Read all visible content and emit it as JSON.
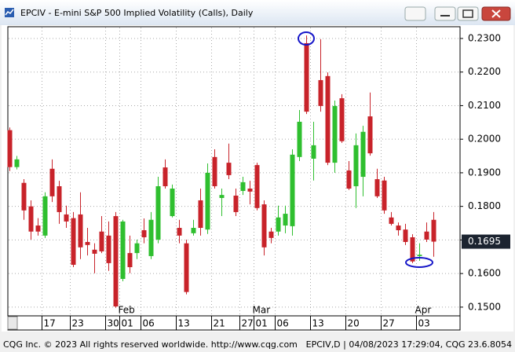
{
  "chart_data": {
    "type": "candlestick",
    "title": "EPCIV - E-mini S&P 500 Implied Volatility (Calls), Daily",
    "categories": [
      null,
      null,
      null,
      null,
      null,
      "17",
      null,
      null,
      null,
      "23",
      null,
      null,
      null,
      null,
      "30",
      null,
      "01",
      null,
      null,
      "06",
      null,
      null,
      null,
      null,
      "13",
      null,
      null,
      null,
      null,
      "21",
      null,
      null,
      null,
      "27",
      null,
      "01",
      null,
      null,
      "06",
      null,
      null,
      null,
      null,
      "13",
      null,
      null,
      null,
      null,
      "20",
      null,
      null,
      null,
      null,
      "27",
      null,
      null,
      null,
      null,
      "03",
      null,
      null
    ],
    "months": [
      null,
      null,
      null,
      null,
      null,
      null,
      null,
      null,
      null,
      null,
      null,
      null,
      null,
      null,
      null,
      null,
      "Feb",
      null,
      null,
      null,
      null,
      null,
      null,
      null,
      null,
      null,
      null,
      null,
      null,
      null,
      null,
      null,
      null,
      null,
      null,
      "Mar",
      null,
      null,
      null,
      null,
      null,
      null,
      null,
      null,
      null,
      null,
      null,
      null,
      null,
      null,
      null,
      null,
      null,
      null,
      null,
      null,
      null,
      null,
      "Apr",
      null,
      null
    ],
    "open": [
      0.2027,
      0.1917,
      0.187,
      0.18,
      0.1743,
      0.1713,
      0.1912,
      0.186,
      0.1776,
      0.1765,
      0.1776,
      0.1694,
      0.1671,
      0.1725,
      0.1713,
      0.1771,
      0.1584,
      0.1661,
      0.1661,
      0.1729,
      0.1652,
      0.1701,
      0.1916,
      0.1771,
      0.1736,
      0.169,
      0.172,
      0.1818,
      0.1731,
      0.1947,
      0.1825,
      0.193,
      0.1832,
      0.1846,
      0.1853,
      0.1923,
      0.1806,
      0.1725,
      0.1725,
      0.1743,
      0.1741,
      0.1947,
      0.2286,
      0.1942,
      0.2176,
      0.2188,
      0.193,
      0.2122,
      0.1907,
      0.186,
      0.1888,
      0.2068,
      0.1881,
      0.1877,
      0.1767,
      0.1743,
      0.1731,
      0.1708,
      0.1652,
      0.1725,
      0.176
    ],
    "high": [
      0.2035,
      0.195,
      0.1881,
      0.1818,
      0.1765,
      0.1842,
      0.194,
      0.1876,
      0.1802,
      0.1783,
      0.1842,
      0.1736,
      0.169,
      0.1771,
      0.1755,
      0.1783,
      0.176,
      0.1713,
      0.1701,
      0.1764,
      0.1783,
      0.1888,
      0.194,
      0.1865,
      0.176,
      0.1701,
      0.176,
      0.1853,
      0.1928,
      0.197,
      0.1853,
      0.1987,
      0.1853,
      0.1888,
      0.1876,
      0.193,
      0.1818,
      0.1736,
      0.1802,
      0.1802,
      0.197,
      0.2087,
      0.2309,
      0.2052,
      0.2298,
      0.2199,
      0.2115,
      0.2134,
      0.1935,
      0.2017,
      0.204,
      0.2139,
      0.1912,
      0.1888,
      0.1783,
      0.1752,
      0.1748,
      0.1717,
      0.169,
      0.1752,
      0.1783
    ],
    "low": [
      0.1905,
      0.191,
      0.176,
      0.1701,
      0.1713,
      0.1706,
      0.1813,
      0.1748,
      0.1736,
      0.1619,
      0.1643,
      0.1654,
      0.1601,
      0.1661,
      0.1608,
      0.1498,
      0.1577,
      0.1601,
      0.1643,
      0.169,
      0.1643,
      0.169,
      0.1853,
      0.1767,
      0.169,
      0.1538,
      0.1713,
      0.1713,
      0.1718,
      0.1853,
      0.1771,
      0.1881,
      0.1771,
      0.1834,
      0.1806,
      0.1788,
      0.1654,
      0.169,
      0.1713,
      0.172,
      0.1713,
      0.1935,
      0.2075,
      0.1877,
      0.2082,
      0.1923,
      0.19,
      0.1989,
      0.1849,
      0.1795,
      0.183,
      0.1951,
      0.1825,
      0.1778,
      0.1743,
      0.1713,
      0.1685,
      0.1631,
      0.1638,
      0.1694,
      0.165
    ],
    "close": [
      0.1917,
      0.194,
      0.1788,
      0.1725,
      0.1725,
      0.183,
      0.183,
      0.1783,
      0.1755,
      0.1626,
      0.1678,
      0.1685,
      0.1659,
      0.1666,
      0.1631,
      0.1502,
      0.1755,
      0.1619,
      0.169,
      0.1708,
      0.176,
      0.186,
      0.186,
      0.1853,
      0.1713,
      0.1545,
      0.1736,
      0.1736,
      0.19,
      0.186,
      0.1834,
      0.1893,
      0.1783,
      0.1872,
      0.1844,
      0.1795,
      0.1678,
      0.1706,
      0.1767,
      0.1778,
      0.1954,
      0.2052,
      0.2082,
      0.1982,
      0.2099,
      0.193,
      0.2099,
      0.1994,
      0.1853,
      0.1982,
      0.2022,
      0.1958,
      0.183,
      0.1788,
      0.1748,
      0.1729,
      0.1694,
      0.1636,
      0.1656,
      0.1701,
      0.1695
    ],
    "up_color": "#2fbf2f",
    "down_color": "#c8232a",
    "last_value": 0.1695,
    "ylim": [
      0.1474,
      0.2335
    ],
    "yticks": [
      {
        "value": 0.15,
        "label": "0.1500"
      },
      {
        "value": 0.16,
        "label": "0.1600"
      },
      {
        "value": 0.17,
        "label": "0.1700"
      },
      {
        "value": 0.18,
        "label": "0.1800"
      },
      {
        "value": 0.19,
        "label": "0.1900"
      },
      {
        "value": 0.2,
        "label": "0.2000"
      },
      {
        "value": 0.21,
        "label": "0.2100"
      },
      {
        "value": 0.22,
        "label": "0.2200"
      },
      {
        "value": 0.23,
        "label": "0.2300"
      }
    ],
    "grid": true
  },
  "status_bar": {
    "left": "CQG Inc. © 2023 All rights reserved worldwide. http://www.cqg.com",
    "right": "EPCIV,D | 04/08/2023 17:29:04, CQG 23.6.8054"
  }
}
